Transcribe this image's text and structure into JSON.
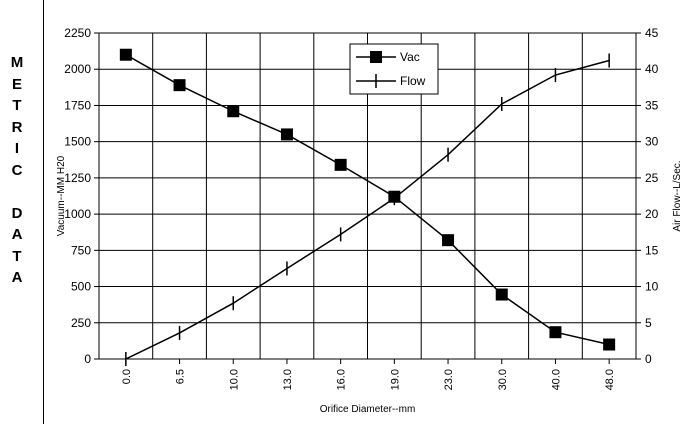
{
  "side_label": [
    "M",
    "E",
    "T",
    "R",
    "I",
    "C",
    "",
    "D",
    "A",
    "T",
    "A"
  ],
  "chart_data": {
    "type": "line",
    "categories": [
      "0.0",
      "6.5",
      "10.0",
      "13.0",
      "16.0",
      "19.0",
      "23.0",
      "30.0",
      "40.0",
      "48.0"
    ],
    "xlabel": "Orifice Diameter--mm",
    "ylabel": "Vacuum--MM H20",
    "y2label": "Air Flow--L/Sec.",
    "ylim": [
      0,
      2250
    ],
    "y2lim": [
      0,
      45
    ],
    "yticks": [
      0,
      250,
      500,
      750,
      1000,
      1250,
      1500,
      1750,
      2000,
      2250
    ],
    "y2ticks": [
      0,
      5,
      10,
      15,
      20,
      25,
      30,
      35,
      40,
      45
    ],
    "grid": true,
    "legend_position": "top-center",
    "series": [
      {
        "name": "Vac",
        "axis": "left",
        "marker": "square",
        "values": [
          2100,
          1890,
          1710,
          1550,
          1340,
          1120,
          820,
          445,
          185,
          100
        ]
      },
      {
        "name": "Flow",
        "axis": "right",
        "marker": "tick",
        "values": [
          0,
          3.6,
          7.7,
          12.5,
          17.2,
          22.2,
          28.2,
          35.2,
          39.2,
          41.2
        ]
      }
    ],
    "colors": {
      "line": "#000000",
      "grid": "#000000",
      "background": "#ffffff"
    }
  }
}
